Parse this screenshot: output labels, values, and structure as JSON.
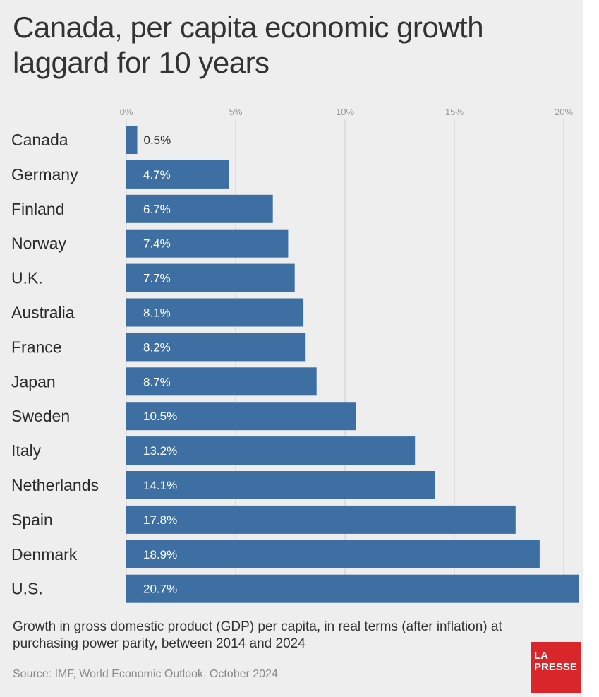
{
  "title": "Canada, per capita economic growth laggard for 10 years",
  "caption": "Growth in gross domestic product (GDP) per capita, in real terms (after inflation) at purchasing power parity, between 2014 and 2024",
  "source": "Source: IMF, World Economic Outlook, October 2024",
  "logo": {
    "line1": "LA",
    "line2": "PRESSE"
  },
  "colors": {
    "bar": "#3d6fa3",
    "background": "#eeeeee",
    "grid": "#cfcfcf",
    "logo": "#d9262b"
  },
  "chart_data": {
    "type": "bar",
    "orientation": "horizontal",
    "title": "Canada, per capita economic growth laggard for 10 years",
    "xlabel": "",
    "ylabel": "",
    "xlim": [
      0,
      20.7
    ],
    "grid": true,
    "legend": "none",
    "ticks": [
      {
        "value": 0,
        "label": "0%"
      },
      {
        "value": 5,
        "label": "5%"
      },
      {
        "value": 10,
        "label": "10%"
      },
      {
        "value": 15,
        "label": "15%"
      },
      {
        "value": 20,
        "label": "20%"
      }
    ],
    "categories": [
      "Canada",
      "Germany",
      "Finland",
      "Norway",
      "U.K.",
      "Australia",
      "France",
      "Japan",
      "Sweden",
      "Italy",
      "Netherlands",
      "Spain",
      "Denmark",
      "U.S."
    ],
    "values": [
      0.5,
      4.7,
      6.7,
      7.4,
      7.7,
      8.1,
      8.2,
      8.7,
      10.5,
      13.2,
      14.1,
      17.8,
      18.9,
      20.7
    ],
    "value_labels": [
      "0.5%",
      "4.7%",
      "6.7%",
      "7.4%",
      "7.7%",
      "8.1%",
      "8.2%",
      "8.7%",
      "10.5%",
      "13.2%",
      "14.1%",
      "17.8%",
      "18.9%",
      "20.7%"
    ]
  }
}
